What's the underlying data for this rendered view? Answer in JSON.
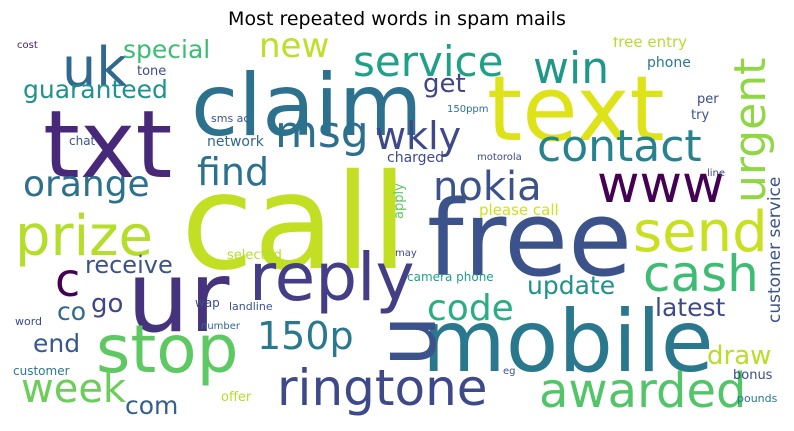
{
  "title": "Most repeated words in spam mails",
  "words": {
    "call": {
      "text": "call",
      "color": "#c2df23"
    },
    "free": {
      "text": "free",
      "color": "#3b528b"
    },
    "ur": {
      "text": "ur",
      "color": "#46337e"
    },
    "mobile": {
      "text": "mobile",
      "color": "#2a788e"
    },
    "txt": {
      "text": "txt",
      "color": "#482878"
    },
    "text": {
      "text": "text",
      "color": "#dde318"
    },
    "claim": {
      "text": "claim",
      "color": "#2c728e"
    },
    "u": {
      "text": "u",
      "color": "#3b528b"
    },
    "stop": {
      "text": "stop",
      "color": "#5ec962"
    },
    "reply": {
      "text": "reply",
      "color": "#433e85"
    },
    "prize": {
      "text": "prize",
      "color": "#b5de2b"
    },
    "www": {
      "text": "www",
      "color": "#440154"
    },
    "send": {
      "text": "send",
      "color": "#c8e020"
    },
    "ringtone": {
      "text": "ringtone",
      "color": "#3e4989"
    },
    "awarded": {
      "text": "awarded",
      "color": "#52c569"
    },
    "cash": {
      "text": "cash",
      "color": "#3fbc73"
    },
    "msg": {
      "text": "msg",
      "color": "#2d708e"
    },
    "uk": {
      "text": "uk",
      "color": "#31688e"
    },
    "win": {
      "text": "win",
      "color": "#1f988b"
    },
    "service": {
      "text": "service",
      "color": "#1fa088"
    },
    "contact": {
      "text": "contact",
      "color": "#26828e"
    },
    "urgent": {
      "text": "urgent",
      "color": "#8fd744"
    },
    "nokia": {
      "text": "nokia",
      "color": "#3b528b"
    },
    "wkly": {
      "text": "wkly",
      "color": "#3e4989"
    },
    "find": {
      "text": "find",
      "color": "#2c728e"
    },
    "orange": {
      "text": "orange",
      "color": "#2d708e"
    },
    "new": {
      "text": "new",
      "color": "#bddf26"
    },
    "c": {
      "text": "c",
      "color": "#440154"
    },
    "150p": {
      "text": "150p",
      "color": "#2a788e"
    },
    "code": {
      "text": "code",
      "color": "#29af7f"
    },
    "week": {
      "text": "week",
      "color": "#6ccd5a"
    },
    "special": {
      "text": "special",
      "color": "#3dbc74"
    },
    "guaranteed": {
      "text": "guaranteed",
      "color": "#20928c"
    },
    "get": {
      "text": "get",
      "color": "#414487"
    },
    "receive": {
      "text": "receive",
      "color": "#3b528b"
    },
    "update": {
      "text": "update",
      "color": "#21918c"
    },
    "latest": {
      "text": "latest",
      "color": "#3e4a89"
    },
    "draw": {
      "text": "draw",
      "color": "#b8de29"
    },
    "com": {
      "text": "com",
      "color": "#355f8d"
    },
    "go": {
      "text": "go",
      "color": "#404688"
    },
    "co": {
      "text": "co",
      "color": "#31688e"
    },
    "end": {
      "text": "end",
      "color": "#38588c"
    },
    "customer_service": {
      "text": "customer service",
      "color": "#3b528b"
    },
    "please_call": {
      "text": "please call",
      "color": "#d0e11c"
    },
    "free_entry": {
      "text": "free entry",
      "color": "#b5de2b"
    },
    "phone": {
      "text": "phone",
      "color": "#2a778e"
    },
    "tone": {
      "text": "tone",
      "color": "#3e4989"
    },
    "cost": {
      "text": "cost",
      "color": "#482173"
    },
    "charged": {
      "text": "charged",
      "color": "#3e4989"
    },
    "network": {
      "text": "network",
      "color": "#31688e"
    },
    "sms_ac": {
      "text": "sms ac",
      "color": "#3b528b"
    },
    "chat": {
      "text": "chat",
      "color": "#3b528b"
    },
    "apply": {
      "text": "apply",
      "color": "#5ec962"
    },
    "150ppm": {
      "text": "150ppm",
      "color": "#2c728e"
    },
    "motorola": {
      "text": "motorola",
      "color": "#3e4989"
    },
    "per": {
      "text": "per",
      "color": "#3e4989"
    },
    "try": {
      "text": "try",
      "color": "#3b528b"
    },
    "line": {
      "text": "line",
      "color": "#3e4989"
    },
    "selected": {
      "text": "selected",
      "color": "#b5de2b"
    },
    "may": {
      "text": "may",
      "color": "#3e4989"
    },
    "camera_phone": {
      "text": "camera phone",
      "color": "#1fa088"
    },
    "wap": {
      "text": "wap",
      "color": "#3e4989"
    },
    "landline": {
      "text": "landline",
      "color": "#3b528b"
    },
    "number": {
      "text": "number",
      "color": "#31688e"
    },
    "word": {
      "text": "word",
      "color": "#3e4989"
    },
    "customer": {
      "text": "customer",
      "color": "#2a788e"
    },
    "offer": {
      "text": "offer",
      "color": "#b5de2b"
    },
    "eg": {
      "text": "eg",
      "color": "#3b528b"
    },
    "bonus": {
      "text": "bonus",
      "color": "#3e4989"
    },
    "pounds": {
      "text": "pounds",
      "color": "#2a788e"
    }
  }
}
